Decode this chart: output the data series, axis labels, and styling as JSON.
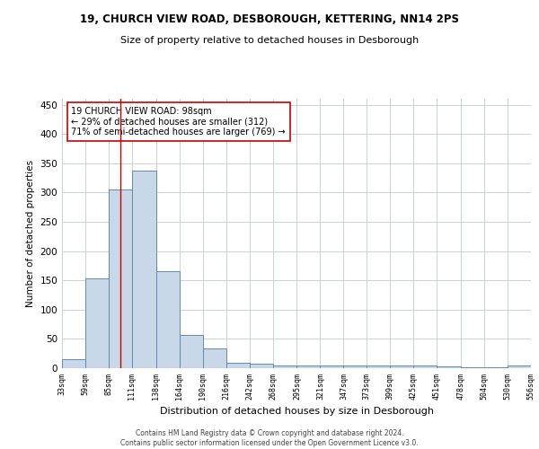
{
  "title1": "19, CHURCH VIEW ROAD, DESBOROUGH, KETTERING, NN14 2PS",
  "title2": "Size of property relative to detached houses in Desborough",
  "xlabel": "Distribution of detached houses by size in Desborough",
  "ylabel": "Number of detached properties",
  "bar_left_edges": [
    33,
    59,
    85,
    111,
    138,
    164,
    190,
    216,
    242,
    268,
    295,
    321,
    347,
    373,
    399,
    425,
    451,
    478,
    504,
    530
  ],
  "bar_widths": [
    26,
    26,
    26,
    27,
    26,
    26,
    26,
    26,
    26,
    27,
    26,
    26,
    26,
    26,
    26,
    26,
    27,
    26,
    26,
    26
  ],
  "bar_heights": [
    15,
    153,
    305,
    338,
    165,
    57,
    34,
    9,
    7,
    5,
    4,
    5,
    5,
    5,
    5,
    5,
    3,
    1,
    1,
    4
  ],
  "bar_color": "#c8d8e8",
  "bar_edge_color": "#5f8ab0",
  "tick_labels": [
    "33sqm",
    "59sqm",
    "85sqm",
    "111sqm",
    "138sqm",
    "164sqm",
    "190sqm",
    "216sqm",
    "242sqm",
    "268sqm",
    "295sqm",
    "321sqm",
    "347sqm",
    "373sqm",
    "399sqm",
    "425sqm",
    "451sqm",
    "478sqm",
    "504sqm",
    "530sqm",
    "556sqm"
  ],
  "property_line_x": 98,
  "property_line_color": "#cc0000",
  "annotation_text1": "19 CHURCH VIEW ROAD: 98sqm",
  "annotation_text2": "← 29% of detached houses are smaller (312)",
  "annotation_text3": "71% of semi-detached houses are larger (769) →",
  "ylim": [
    0,
    460
  ],
  "yticks": [
    0,
    50,
    100,
    150,
    200,
    250,
    300,
    350,
    400,
    450
  ],
  "footer1": "Contains HM Land Registry data © Crown copyright and database right 2024.",
  "footer2": "Contains public sector information licensed under the Open Government Licence v3.0.",
  "background_color": "#ffffff",
  "grid_color": "#c8d0d8"
}
